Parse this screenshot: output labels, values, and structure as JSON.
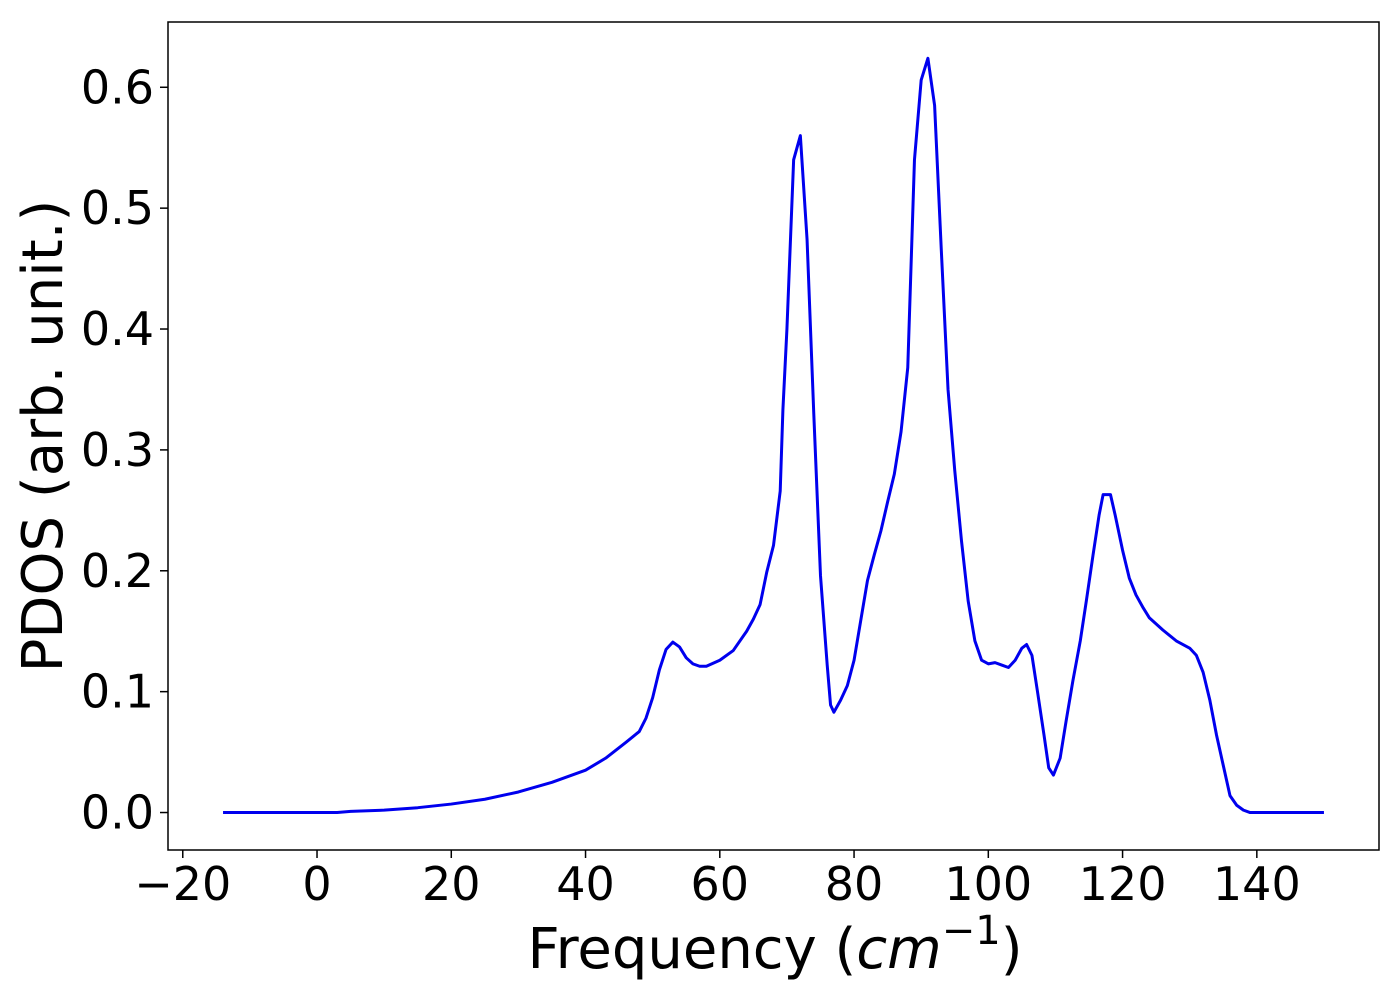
{
  "chart_data": {
    "type": "line",
    "x_label": {
      "prefix": "Frequency (",
      "unit": "cm",
      "exponent": "−1",
      "suffix": ")"
    },
    "y_label": "PDOS (arb. unit.)",
    "x": [
      -14,
      -5,
      0,
      3,
      5,
      10,
      15,
      20,
      25,
      30,
      35,
      40,
      43,
      46,
      48,
      49,
      50,
      51,
      52,
      53,
      54,
      55,
      56,
      57,
      58,
      60,
      62,
      64,
      65,
      66,
      67,
      68,
      69,
      69.4,
      70,
      71,
      72,
      73,
      74,
      75,
      76,
      76.5,
      77,
      78,
      79,
      80,
      82,
      83,
      84,
      85,
      86,
      87,
      88,
      89,
      90,
      91,
      92,
      93,
      94,
      95,
      96,
      97,
      98,
      99,
      100,
      101,
      102,
      103,
      104,
      105,
      105.7,
      106.5,
      107.3,
      108.3,
      109,
      109.7,
      110.7,
      111.6,
      112.6,
      113.7,
      114.6,
      115.6,
      116.5,
      117.1,
      118.2,
      118.9,
      120,
      121,
      122,
      123,
      124,
      126,
      128,
      130,
      131,
      132,
      133,
      134,
      135,
      136,
      137,
      138,
      139,
      150
    ],
    "values": [
      0,
      0,
      0,
      0,
      0.001,
      0.002,
      0.004,
      0.007,
      0.011,
      0.017,
      0.025,
      0.035,
      0.045,
      0.058,
      0.067,
      0.078,
      0.095,
      0.118,
      0.135,
      0.141,
      0.137,
      0.128,
      0.123,
      0.121,
      0.121,
      0.126,
      0.134,
      0.15,
      0.16,
      0.172,
      0.199,
      0.221,
      0.266,
      0.333,
      0.4,
      0.54,
      0.56,
      0.474,
      0.33,
      0.196,
      0.122,
      0.089,
      0.083,
      0.093,
      0.105,
      0.126,
      0.192,
      0.213,
      0.233,
      0.257,
      0.28,
      0.315,
      0.368,
      0.54,
      0.606,
      0.624,
      0.585,
      0.465,
      0.35,
      0.283,
      0.225,
      0.175,
      0.142,
      0.126,
      0.123,
      0.124,
      0.122,
      0.12,
      0.126,
      0.136,
      0.139,
      0.13,
      0.101,
      0.064,
      0.037,
      0.031,
      0.045,
      0.076,
      0.109,
      0.142,
      0.175,
      0.213,
      0.246,
      0.263,
      0.263,
      0.246,
      0.217,
      0.194,
      0.18,
      0.17,
      0.161,
      0.151,
      0.142,
      0.136,
      0.13,
      0.116,
      0.093,
      0.064,
      0.039,
      0.014,
      0.006,
      0.002,
      0,
      0
    ],
    "color": "#0000ee",
    "xlim": [
      -22.2,
      158.2
    ],
    "ylim": [
      -0.031,
      0.654
    ],
    "xticks": [
      {
        "value": -20,
        "label": "−20"
      },
      0,
      20,
      40,
      60,
      80,
      100,
      120,
      140
    ],
    "yticks": [
      {
        "value": 0,
        "label": "0.0"
      },
      {
        "value": 0.1,
        "label": "0.1"
      },
      {
        "value": 0.2,
        "label": "0.2"
      },
      {
        "value": 0.3,
        "label": "0.3"
      },
      {
        "value": 0.4,
        "label": "0.4"
      },
      {
        "value": 0.5,
        "label": "0.5"
      },
      {
        "value": 0.6,
        "label": "0.6"
      }
    ],
    "grid": false
  }
}
